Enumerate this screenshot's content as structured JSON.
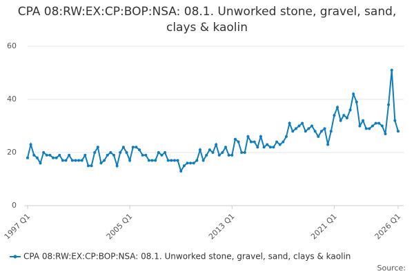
{
  "chart_data": {
    "type": "line",
    "title": "CPA 08:RW:EX:CP:BOP:NSA: 08.1. Unworked stone, gravel, sand, clays & kaolin",
    "source": "Source:",
    "categories": [
      "1997 Q1",
      "1997 Q2",
      "1997 Q3",
      "1997 Q4",
      "1998 Q1",
      "1998 Q2",
      "1998 Q3",
      "1998 Q4",
      "1999 Q1",
      "1999 Q2",
      "1999 Q3",
      "1999 Q4",
      "2000 Q1",
      "2000 Q2",
      "2000 Q3",
      "2000 Q4",
      "2001 Q1",
      "2001 Q2",
      "2001 Q3",
      "2001 Q4",
      "2002 Q1",
      "2002 Q2",
      "2002 Q3",
      "2002 Q4",
      "2003 Q1",
      "2003 Q2",
      "2003 Q3",
      "2003 Q4",
      "2004 Q1",
      "2004 Q2",
      "2004 Q3",
      "2004 Q4",
      "2005 Q1",
      "2005 Q2",
      "2005 Q3",
      "2005 Q4",
      "2006 Q1",
      "2006 Q2",
      "2006 Q3",
      "2006 Q4",
      "2007 Q1",
      "2007 Q2",
      "2007 Q3",
      "2007 Q4",
      "2008 Q1",
      "2008 Q2",
      "2008 Q3",
      "2008 Q4",
      "2009 Q1",
      "2009 Q2",
      "2009 Q3",
      "2009 Q4",
      "2010 Q1",
      "2010 Q2",
      "2010 Q3",
      "2010 Q4",
      "2011 Q1",
      "2011 Q2",
      "2011 Q3",
      "2011 Q4",
      "2012 Q1",
      "2012 Q2",
      "2012 Q3",
      "2012 Q4",
      "2013 Q1",
      "2013 Q2",
      "2013 Q3",
      "2013 Q4",
      "2014 Q1",
      "2014 Q2",
      "2014 Q3",
      "2014 Q4",
      "2015 Q1",
      "2015 Q2",
      "2015 Q3",
      "2015 Q4",
      "2016 Q1",
      "2016 Q2",
      "2016 Q3",
      "2016 Q4",
      "2017 Q1",
      "2017 Q2",
      "2017 Q3",
      "2017 Q4",
      "2018 Q1",
      "2018 Q2",
      "2018 Q3",
      "2018 Q4",
      "2019 Q1",
      "2019 Q2",
      "2019 Q3",
      "2019 Q4",
      "2020 Q1",
      "2020 Q2",
      "2020 Q3",
      "2020 Q4",
      "2021 Q1",
      "2021 Q2",
      "2021 Q3",
      "2021 Q4",
      "2022 Q1",
      "2022 Q2",
      "2022 Q3",
      "2022 Q4",
      "2023 Q1",
      "2023 Q2",
      "2023 Q3",
      "2023 Q4",
      "2024 Q1",
      "2024 Q2",
      "2024 Q3",
      "2024 Q4",
      "2025 Q1",
      "2025 Q2",
      "2025 Q3",
      "2025 Q4",
      "2026 Q1"
    ],
    "series": [
      {
        "name": "CPA 08:RW:EX:CP:BOP:NSA: 08.1. Unworked stone, gravel, sand, clays & kaolin",
        "color": "#0f7dbd",
        "values": [
          18,
          23,
          19,
          18,
          16,
          20,
          19,
          19,
          18,
          18,
          19,
          17,
          17,
          19,
          17,
          17,
          17,
          17,
          19,
          15,
          15,
          20,
          22,
          16,
          17,
          19,
          20,
          19,
          15,
          20,
          22,
          20,
          17,
          22,
          22,
          21,
          19,
          19,
          17,
          17,
          17,
          20,
          19,
          20,
          17,
          17,
          17,
          17,
          13,
          15,
          16,
          16,
          16,
          17,
          21,
          17,
          19,
          21,
          20,
          23,
          19,
          20,
          22,
          19,
          19,
          25,
          24,
          20,
          20,
          26,
          24,
          24,
          22,
          26,
          22,
          23,
          22,
          22,
          24,
          23,
          24,
          26,
          31,
          28,
          29,
          30,
          31,
          28,
          29,
          30,
          28,
          26,
          28,
          29,
          23,
          28,
          34,
          37,
          32,
          34,
          33,
          36,
          42,
          39,
          30,
          32,
          29,
          29,
          30,
          31,
          31,
          30,
          27,
          38,
          51,
          32,
          28
        ]
      }
    ],
    "ylim": [
      0,
      60
    ],
    "yticks": [
      0,
      20,
      40,
      60
    ],
    "grid": true
  }
}
